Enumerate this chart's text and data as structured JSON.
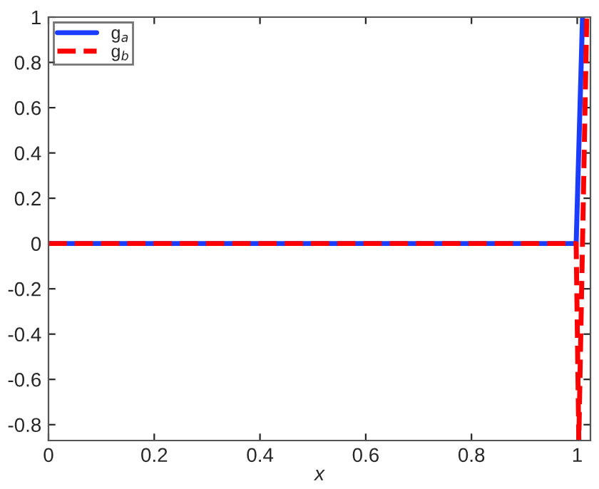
{
  "chart_data": {
    "type": "line",
    "xlabel": "x",
    "legend": "top left",
    "grid": false,
    "xlim": [
      0,
      1.025
    ],
    "ylim": [
      -0.87,
      1
    ],
    "xticks": [
      0,
      0.2,
      0.4,
      0.6,
      0.8,
      1
    ],
    "yticks": [
      -0.8,
      -0.6,
      -0.4,
      -0.2,
      0,
      0.2,
      0.4,
      0.6,
      0.8,
      1
    ],
    "series": [
      {
        "name": "g$_{a}$",
        "color": "#1a3cff",
        "line_style": "solid",
        "x": [
          0,
          0.998,
          1.01
        ],
        "values": [
          0,
          0,
          1
        ]
      },
      {
        "name": "g$_{b}$",
        "color": "#ff0000",
        "line_style": "dashed",
        "x": [
          0,
          0.998,
          1.003,
          1.018
        ],
        "values": [
          0,
          0,
          -0.87,
          1
        ]
      }
    ]
  }
}
